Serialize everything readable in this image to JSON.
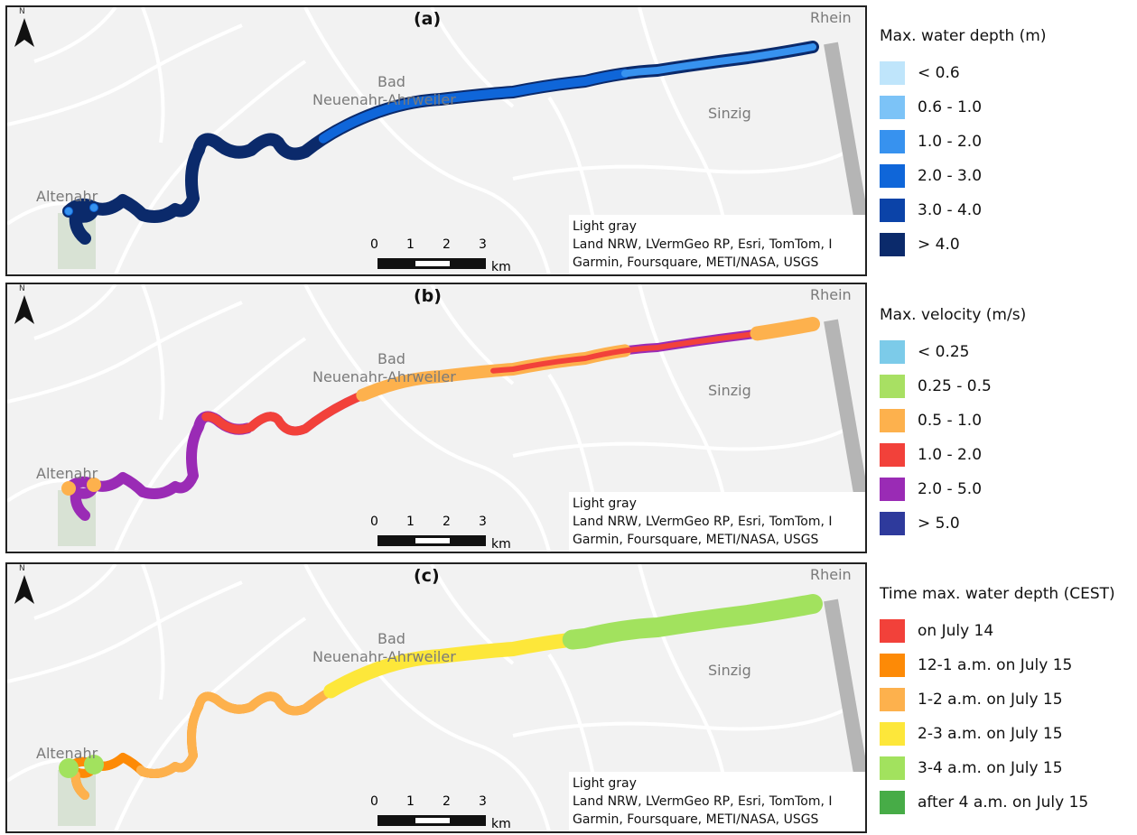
{
  "map_common": {
    "places": {
      "rhein": "Rhein",
      "bad": "Bad",
      "neuenahr": "Neuenahr-Ahrweiler",
      "sinzig": "Sinzig",
      "altenahr": "Altenahr"
    },
    "north_label": "N",
    "attribution": {
      "line1": "Light gray",
      "line2": "Land NRW, LVermGeo RP, Esri, TomTom, I",
      "line3": "Garmin, Foursquare, METI/NASA, USGS"
    },
    "scale": {
      "ticks": [
        "0",
        "1",
        "2",
        "3"
      ],
      "unit": "km"
    },
    "basemap_color": "#f2f2f2",
    "road_color": "#ffffff",
    "rail_color": "#b5b5b5"
  },
  "panels": [
    {
      "label": "(a)",
      "legend_title": "Max. water depth (m)",
      "classes": [
        {
          "label": "< 0.6",
          "color": "#bfe5fb"
        },
        {
          "label": "0.6 - 1.0",
          "color": "#7cc3f7"
        },
        {
          "label": "1.0 - 2.0",
          "color": "#3792ef"
        },
        {
          "label": "2.0 - 3.0",
          "color": "#0f66d9"
        },
        {
          "label": "3.0 - 4.0",
          "color": "#0b43a8"
        },
        {
          "label": "> 4.0",
          "color": "#0b2a6b"
        }
      ]
    },
    {
      "label": "(b)",
      "legend_title": "Max. velocity (m/s)",
      "classes": [
        {
          "label": "< 0.25",
          "color": "#7ccbe9"
        },
        {
          "label": "0.25 - 0.5",
          "color": "#a8e063"
        },
        {
          "label": "0.5 - 1.0",
          "color": "#fdb14d"
        },
        {
          "label": "1.0 - 2.0",
          "color": "#f2413a"
        },
        {
          "label": "2.0 - 5.0",
          "color": "#9a2bb5"
        },
        {
          "label": "> 5.0",
          "color": "#2e3a9c"
        }
      ]
    },
    {
      "label": "(c)",
      "legend_title": "Time max. water depth (CEST)",
      "classes": [
        {
          "label": "on July 14",
          "color": "#f2413a"
        },
        {
          "label": "12-1 a.m. on July 15",
          "color": "#fd8a06"
        },
        {
          "label": "1-2 a.m. on July 15",
          "color": "#fdb14d"
        },
        {
          "label": "2-3 a.m. on July 15",
          "color": "#fde73a"
        },
        {
          "label": "3-4 a.m. on July 15",
          "color": "#a2e25e"
        },
        {
          "label": "after 4 a.m. on July 15",
          "color": "#47ac47"
        }
      ]
    }
  ]
}
